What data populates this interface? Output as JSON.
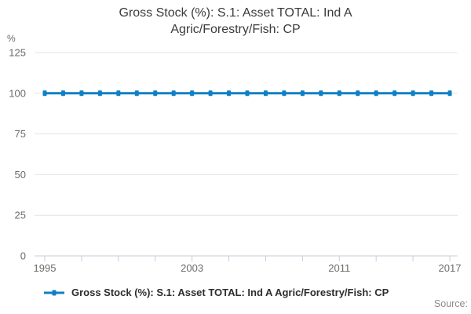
{
  "title": {
    "line1": "Gross Stock (%): S.1: Asset TOTAL: Ind A",
    "line2": "Agric/Forestry/Fish: CP"
  },
  "y_axis": {
    "unit": "%"
  },
  "legend": {
    "items": [
      {
        "label": "Gross Stock (%): S.1: Asset TOTAL: Ind A Agric/Forestry/Fish: CP"
      }
    ]
  },
  "footer": {
    "source_label": "Source:"
  },
  "colors": {
    "series": "#0e80c5",
    "gridline": "#e4e4e4",
    "axis": "#c4cfdd",
    "tick_text": "#6b6b6b",
    "title_text": "#3b3b3b",
    "legend_text": "#2d2d2d",
    "source_text": "#8c8c8c"
  },
  "chart_data": {
    "type": "line",
    "title": "Gross Stock (%): S.1: Asset TOTAL: Ind A Agric/Forestry/Fish: CP",
    "ylabel": "%",
    "x": [
      1995,
      1996,
      1997,
      1998,
      1999,
      2000,
      2001,
      2002,
      2003,
      2004,
      2005,
      2006,
      2007,
      2008,
      2009,
      2010,
      2011,
      2012,
      2013,
      2014,
      2015,
      2016,
      2017
    ],
    "series": [
      {
        "name": "Gross Stock (%): S.1: Asset TOTAL: Ind A Agric/Forestry/Fish: CP",
        "values": [
          100,
          100,
          100,
          100,
          100,
          100,
          100,
          100,
          100,
          100,
          100,
          100,
          100,
          100,
          100,
          100,
          100,
          100,
          100,
          100,
          100,
          100,
          100
        ]
      }
    ],
    "ylim": [
      0,
      125
    ],
    "yticks": [
      0,
      25,
      50,
      75,
      100,
      125
    ],
    "xtick_labels": [
      1995,
      2003,
      2011,
      2017
    ],
    "xtick_minor_step": 2,
    "grid": true,
    "legend_position": "bottom-left",
    "marker": "square"
  }
}
